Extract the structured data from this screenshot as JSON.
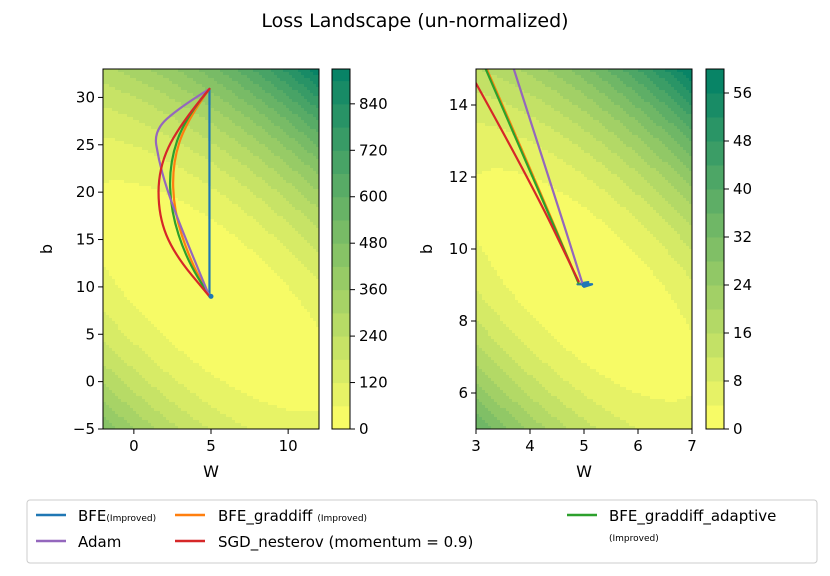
{
  "chart_data": [
    {
      "type": "contour",
      "title": "Loss Landscape (un-normalized)",
      "xlabel": "W",
      "ylabel": "b",
      "xlim": [
        -2,
        12
      ],
      "ylim": [
        -5,
        33
      ],
      "xticks": [
        0,
        5,
        10
      ],
      "yticks": [
        -5,
        0,
        5,
        10,
        15,
        20,
        25,
        30
      ],
      "colorbar": {
        "levels": [
          0,
          60,
          120,
          180,
          240,
          300,
          360,
          420,
          480,
          540,
          600,
          660,
          720,
          780,
          840,
          900,
          930
        ],
        "ticks": [
          0,
          120,
          240,
          360,
          480,
          600,
          720,
          840
        ]
      },
      "minimum": {
        "W": 5,
        "b": 9
      },
      "series": [
        {
          "name": "BFE",
          "color": "#1f77b4",
          "points": [
            [
              4.9,
              30.9
            ],
            [
              4.9,
              9
            ]
          ]
        },
        {
          "name": "BFE_graddiff",
          "color": "#ff7f0e",
          "points": [
            [
              4.9,
              30.9
            ],
            [
              3.4,
              27.5
            ],
            [
              2.5,
              23.0
            ],
            [
              2.6,
              18.0
            ],
            [
              3.6,
              13.0
            ],
            [
              4.9,
              9
            ]
          ]
        },
        {
          "name": "BFE_graddiff_adaptive",
          "color": "#2ca02c",
          "points": [
            [
              4.9,
              30.9
            ],
            [
              3.3,
              27.8
            ],
            [
              2.3,
              23.0
            ],
            [
              2.4,
              18.0
            ],
            [
              3.4,
              13.0
            ],
            [
              4.9,
              9
            ]
          ]
        },
        {
          "name": "Adam",
          "color": "#9467bd",
          "points": [
            [
              4.9,
              30.9
            ],
            [
              3.0,
              29.0
            ],
            [
              1.3,
              26.5
            ],
            [
              1.6,
              23.5
            ],
            [
              2.1,
              20.5
            ],
            [
              3.0,
              16.5
            ],
            [
              4.9,
              9
            ]
          ]
        },
        {
          "name": "SGD_nesterov",
          "color": "#d62728",
          "points": [
            [
              4.9,
              30.9
            ],
            [
              2.9,
              27.0
            ],
            [
              1.6,
              22.5
            ],
            [
              1.6,
              17.5
            ],
            [
              2.6,
              13.5
            ],
            [
              4.9,
              9
            ]
          ]
        }
      ]
    },
    {
      "type": "contour",
      "title": "",
      "xlabel": "W",
      "ylabel": "b",
      "xlim": [
        3,
        7
      ],
      "ylim": [
        5,
        15
      ],
      "xticks": [
        3,
        4,
        5,
        6,
        7
      ],
      "yticks": [
        6,
        8,
        10,
        12,
        14
      ],
      "colorbar": {
        "levels": [
          0,
          4,
          8,
          12,
          16,
          20,
          24,
          28,
          32,
          36,
          40,
          44,
          48,
          52,
          56,
          60
        ],
        "ticks": [
          0,
          8,
          16,
          24,
          32,
          40,
          48,
          56
        ]
      },
      "minimum": {
        "W": 5,
        "b": 9
      },
      "series": [
        {
          "name": "BFE",
          "color": "#1f77b4",
          "points": [
            [
              4.88,
              9.02
            ],
            [
              5.15,
              9.02
            ],
            [
              5.0,
              8.95
            ],
            [
              5.08,
              9.08
            ],
            [
              4.95,
              9.05
            ]
          ]
        },
        {
          "name": "BFE_graddiff",
          "color": "#ff7f0e",
          "points": [
            [
              3.2,
              15.0
            ],
            [
              4.1,
              11.9
            ],
            [
              4.9,
              9.05
            ]
          ]
        },
        {
          "name": "BFE_graddiff_adaptive",
          "color": "#2ca02c",
          "points": [
            [
              3.18,
              15.0
            ],
            [
              4.05,
              12.0
            ],
            [
              4.9,
              9.05
            ]
          ]
        },
        {
          "name": "Adam",
          "color": "#9467bd",
          "points": [
            [
              3.7,
              15.0
            ],
            [
              4.35,
              12.0
            ],
            [
              4.98,
              9.0
            ]
          ]
        },
        {
          "name": "SGD_nesterov",
          "color": "#d62728",
          "points": [
            [
              3.0,
              14.6
            ],
            [
              4.0,
              11.9
            ],
            [
              4.9,
              9.1
            ]
          ]
        }
      ]
    }
  ],
  "legend": {
    "items": [
      {
        "name": "BFE",
        "suffix": "(Improved)",
        "color": "#1f77b4"
      },
      {
        "name": "BFE_graddiff",
        "suffix": "(Improved)",
        "color": "#ff7f0e"
      },
      {
        "name": "BFE_graddiff_adaptive",
        "suffix": "(Improved)",
        "color": "#2ca02c"
      },
      {
        "name": "Adam",
        "suffix": "",
        "color": "#9467bd"
      },
      {
        "name": "SGD_nesterov (momentum = 0.9)",
        "suffix": "",
        "color": "#d62728"
      }
    ]
  }
}
